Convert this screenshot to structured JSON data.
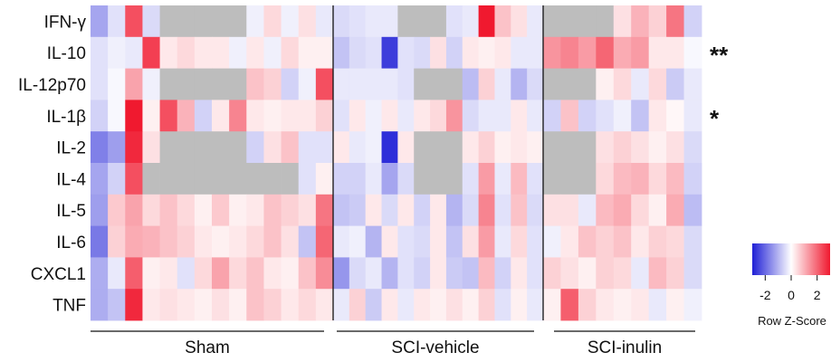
{
  "chart_data": {
    "type": "heatmap",
    "rows": [
      "IFN-γ",
      "IL-10",
      "IL-12p70",
      "IL-1β",
      "IL-2",
      "IL-4",
      "IL-5",
      "IL-6",
      "CXCL1",
      "TNF"
    ],
    "groups": [
      {
        "label": "Sham",
        "columns": 14
      },
      {
        "label": "SCI-vehicle",
        "columns": 13
      },
      {
        "label": "SCI-inulin",
        "columns": 9
      }
    ],
    "significance": [
      "",
      "**",
      "",
      "*",
      "",
      "",
      "",
      "",
      "",
      ""
    ],
    "missing_value_color": "#bdbdbd",
    "values": [
      [
        -1.2,
        -0.4,
        2.3,
        -0.5,
        null,
        null,
        null,
        null,
        null,
        -0.2,
        0.5,
        -0.2,
        0.4,
        -0.3,
        -0.5,
        -0.4,
        -0.3,
        -0.3,
        null,
        null,
        null,
        -0.4,
        -0.3,
        3.0,
        0.8,
        0.4,
        -0.3,
        null,
        null,
        null,
        null,
        0.4,
        1.0,
        0.6,
        1.8,
        -0.6
      ],
      [
        -0.4,
        -0.2,
        -0.3,
        2.5,
        0.3,
        0.5,
        0.3,
        0.3,
        -0.2,
        0.3,
        -0.2,
        0.5,
        0.2,
        0.2,
        -0.8,
        -0.5,
        -0.4,
        -2.6,
        -0.4,
        -0.5,
        0.4,
        -0.6,
        0.3,
        0.2,
        0.3,
        -0.3,
        -0.3,
        1.4,
        1.6,
        1.3,
        2.0,
        1.1,
        1.3,
        0.3,
        0.3,
        -0.1
      ],
      [
        -0.4,
        -0.1,
        1.2,
        -0.2,
        null,
        null,
        null,
        null,
        null,
        0.8,
        0.6,
        -0.6,
        -0.2,
        2.3,
        -0.3,
        -0.3,
        -0.3,
        -0.3,
        -0.4,
        null,
        null,
        null,
        -0.9,
        0.6,
        -0.3,
        -1.0,
        -0.5,
        null,
        null,
        null,
        0.2,
        0.5,
        -0.3,
        0.5,
        -0.7,
        -0.3
      ],
      [
        -0.6,
        -0.1,
        3.0,
        0.2,
        2.3,
        1.0,
        -0.6,
        0.3,
        1.6,
        0.3,
        0.2,
        0.3,
        0.3,
        0.6,
        -0.4,
        0.3,
        -0.2,
        0.3,
        -0.3,
        0.3,
        0.5,
        1.4,
        -0.5,
        -0.3,
        -0.3,
        0.3,
        -0.3,
        -0.6,
        0.8,
        -0.6,
        -0.4,
        -0.2,
        -0.8,
        0.3,
        0.1,
        -0.3
      ],
      [
        -1.7,
        -1.3,
        2.8,
        0.4,
        null,
        null,
        null,
        null,
        null,
        -0.6,
        0.4,
        0.8,
        -0.4,
        -0.4,
        0.3,
        -0.3,
        -0.2,
        -2.8,
        0.3,
        null,
        null,
        null,
        0.3,
        0.6,
        0.2,
        0.3,
        0.2,
        null,
        null,
        null,
        0.4,
        0.6,
        0.4,
        0.2,
        0.4,
        -0.5
      ],
      [
        -1.2,
        -0.6,
        2.3,
        null,
        null,
        null,
        null,
        null,
        null,
        null,
        null,
        null,
        -0.4,
        0.2,
        -0.6,
        -0.6,
        -0.3,
        -1.2,
        -0.5,
        null,
        null,
        null,
        -0.4,
        1.3,
        -0.3,
        0.9,
        -0.4,
        null,
        null,
        null,
        0.5,
        0.9,
        1.0,
        0.5,
        0.9,
        -0.6
      ],
      [
        -1.3,
        0.7,
        1.2,
        0.5,
        0.8,
        0.5,
        0.2,
        0.7,
        0.2,
        0.3,
        0.8,
        0.6,
        0.4,
        1.8,
        -0.8,
        -0.7,
        0.3,
        -0.5,
        0.3,
        -0.6,
        0.3,
        -1.0,
        -0.5,
        1.6,
        -0.4,
        0.8,
        -0.5,
        0.4,
        0.4,
        -0.3,
        0.9,
        1.1,
        0.5,
        0.2,
        1.1,
        -0.9
      ],
      [
        -1.8,
        0.6,
        1.1,
        1.0,
        0.8,
        0.6,
        0.3,
        0.2,
        0.3,
        0.5,
        0.8,
        0.4,
        -0.8,
        2.0,
        -0.3,
        -0.2,
        -1.0,
        0.3,
        -0.4,
        -0.5,
        0.3,
        -0.8,
        0.4,
        1.3,
        -0.3,
        0.5,
        -0.4,
        -0.2,
        0.3,
        0.8,
        0.6,
        0.8,
        0.3,
        0.6,
        0.5,
        -0.5
      ],
      [
        -1.1,
        -0.3,
        2.1,
        0.2,
        0.3,
        -0.4,
        0.5,
        1.2,
        0.5,
        0.8,
        0.3,
        0.2,
        0.8,
        1.5,
        -1.4,
        -0.5,
        -0.3,
        -1.0,
        -0.4,
        -0.6,
        0.3,
        -0.7,
        -0.8,
        0.9,
        -0.6,
        0.3,
        -0.4,
        0.6,
        0.4,
        0.2,
        0.6,
        0.5,
        -0.3,
        0.9,
        0.6,
        -0.5
      ],
      [
        -1.1,
        -0.8,
        2.8,
        0.3,
        0.4,
        0.3,
        0.2,
        0.4,
        0.2,
        0.8,
        0.6,
        0.3,
        0.5,
        0.3,
        -0.3,
        0.6,
        -0.7,
        0.3,
        -0.3,
        0.3,
        0.2,
        0.4,
        0.2,
        0.6,
        -0.4,
        0.2,
        -0.3,
        0.2,
        2.1,
        0.6,
        0.3,
        0.2,
        0.3,
        -0.3,
        0.2,
        -0.2
      ]
    ],
    "legend": {
      "title": "Row Z-Score",
      "ticks": [
        "-2",
        "0",
        "2"
      ],
      "range": [
        -3,
        3
      ],
      "colors": {
        "low": "#1f1fd6",
        "mid": "#ffffff",
        "high": "#f0192f"
      }
    }
  }
}
